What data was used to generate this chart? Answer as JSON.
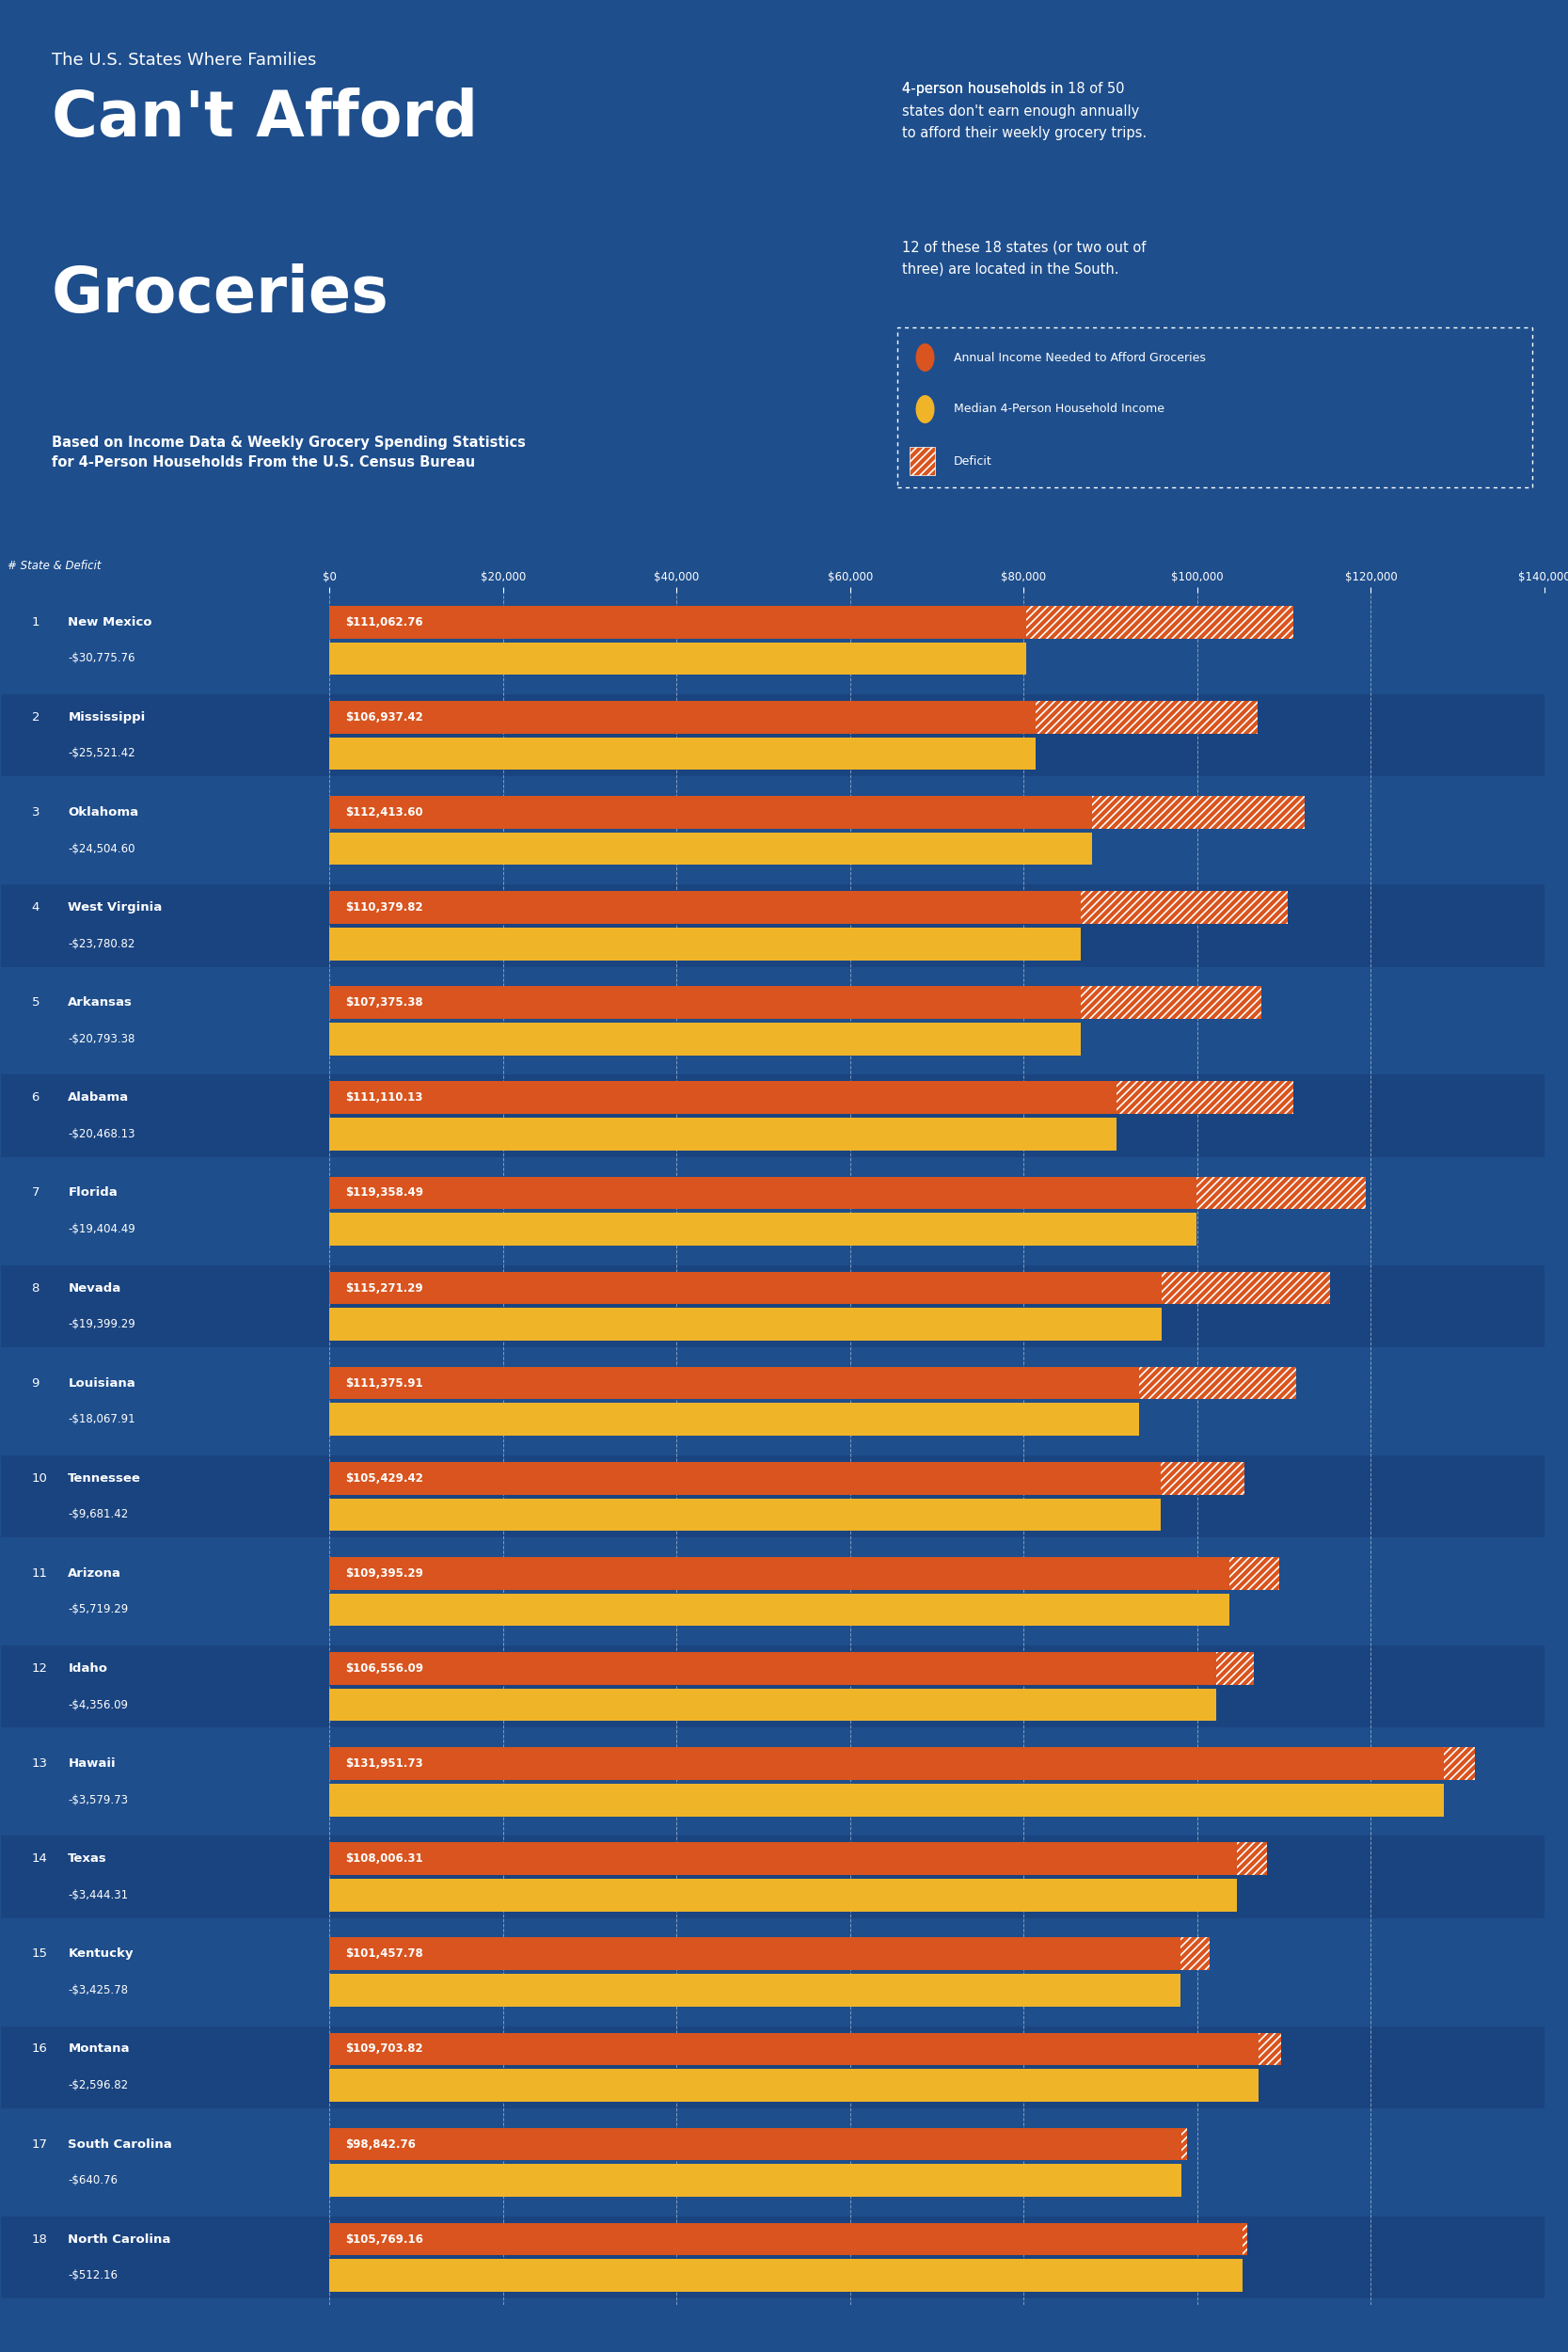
{
  "bg_color": "#1e4e8c",
  "bg_dark": "#1a3f7a",
  "row_even": "#1e4e8c",
  "row_odd": "#1a4480",
  "title_small": "The U.S. States Where Families",
  "title_line1": "Can't Afford",
  "title_line2": "Groceries",
  "subtitle": "Based on Income Data & Weekly Grocery Spending Statistics\nfor 4-Person Households From the U.S. Census Bureau",
  "desc1_bold": "18 of 50\nstates",
  "desc1": "4-person households in 18 of 50\nstates don't earn enough annually\nto afford their weekly grocery trips.",
  "desc2": "12 of these 18 states (or two out of\nthree) are located in the South.",
  "legend_income_needed": "Annual Income Needed to Afford Groceries",
  "legend_median_income": "Median 4-Person Household Income",
  "legend_deficit": "Deficit",
  "color_income_needed": "#d9541e",
  "color_median_income": "#f0b429",
  "color_text_median": "#f0b429",
  "states": [
    {
      "rank": 1,
      "name": "New Mexico",
      "deficit": -30775.76,
      "income_needed": 111062.76,
      "median_income": 80287.0
    },
    {
      "rank": 2,
      "name": "Mississippi",
      "deficit": -25521.42,
      "income_needed": 106937.42,
      "median_income": 81416.0
    },
    {
      "rank": 3,
      "name": "Oklahoma",
      "deficit": -24504.6,
      "income_needed": 112413.6,
      "median_income": 87909.0
    },
    {
      "rank": 4,
      "name": "West Virginia",
      "deficit": -23780.82,
      "income_needed": 110379.82,
      "median_income": 86599.0
    },
    {
      "rank": 5,
      "name": "Arkansas",
      "deficit": -20793.38,
      "income_needed": 107375.38,
      "median_income": 86582.0
    },
    {
      "rank": 6,
      "name": "Alabama",
      "deficit": -20468.13,
      "income_needed": 111110.13,
      "median_income": 90642.0
    },
    {
      "rank": 7,
      "name": "Florida",
      "deficit": -19404.49,
      "income_needed": 119358.49,
      "median_income": 99954.0
    },
    {
      "rank": 8,
      "name": "Nevada",
      "deficit": -19399.29,
      "income_needed": 115271.29,
      "median_income": 95872.0
    },
    {
      "rank": 9,
      "name": "Louisiana",
      "deficit": -18067.91,
      "income_needed": 111375.91,
      "median_income": 93308.0
    },
    {
      "rank": 10,
      "name": "Tennessee",
      "deficit": -9681.42,
      "income_needed": 105429.42,
      "median_income": 95748.0
    },
    {
      "rank": 11,
      "name": "Arizona",
      "deficit": -5719.29,
      "income_needed": 109395.29,
      "median_income": 103676.0
    },
    {
      "rank": 12,
      "name": "Idaho",
      "deficit": -4356.09,
      "income_needed": 106556.09,
      "median_income": 102200.0
    },
    {
      "rank": 13,
      "name": "Hawaii",
      "deficit": -3579.73,
      "income_needed": 131951.73,
      "median_income": 128372.0
    },
    {
      "rank": 14,
      "name": "Texas",
      "deficit": -3444.31,
      "income_needed": 108006.31,
      "median_income": 104562.0
    },
    {
      "rank": 15,
      "name": "Kentucky",
      "deficit": -3425.78,
      "income_needed": 101457.78,
      "median_income": 98032.0
    },
    {
      "rank": 16,
      "name": "Montana",
      "deficit": -2596.82,
      "income_needed": 109703.82,
      "median_income": 107107.0
    },
    {
      "rank": 17,
      "name": "South Carolina",
      "deficit": -640.76,
      "income_needed": 98842.76,
      "median_income": 98202.0
    },
    {
      "rank": 18,
      "name": "North Carolina",
      "deficit": -512.16,
      "income_needed": 105769.16,
      "median_income": 105257.0
    }
  ],
  "xmax": 140000,
  "xticks": [
    0,
    20000,
    40000,
    60000,
    80000,
    100000,
    120000,
    140000
  ]
}
